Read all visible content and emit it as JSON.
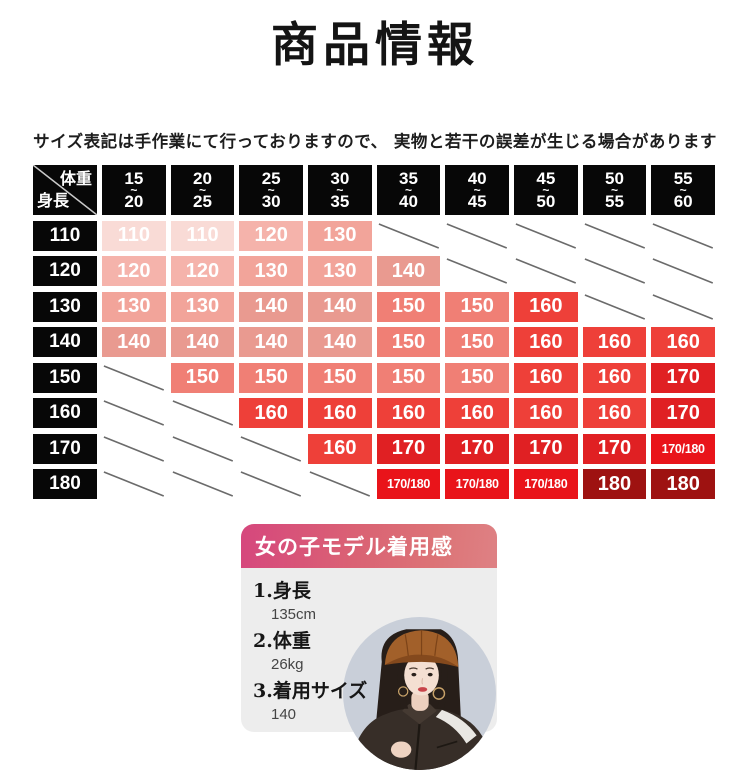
{
  "title": "商品情報",
  "note": "サイズ表記は手作業にて行っておりますので、 実物と若干の誤差が生じる場合があります",
  "size_table": {
    "corner": {
      "weight_label": "体重",
      "height_label": "身長"
    },
    "tilde": "~",
    "weight_columns": [
      {
        "from": "15",
        "to": "20"
      },
      {
        "from": "20",
        "to": "25"
      },
      {
        "from": "25",
        "to": "30"
      },
      {
        "from": "30",
        "to": "35"
      },
      {
        "from": "35",
        "to": "40"
      },
      {
        "from": "40",
        "to": "45"
      },
      {
        "from": "45",
        "to": "50"
      },
      {
        "from": "50",
        "to": "55"
      },
      {
        "from": "55",
        "to": "60"
      }
    ],
    "rows": [
      {
        "height": "110",
        "cells": [
          "110",
          "110",
          "120",
          "130",
          "",
          "",
          "",
          "",
          ""
        ]
      },
      {
        "height": "120",
        "cells": [
          "120",
          "120",
          "130",
          "130",
          "140",
          "",
          "",
          "",
          ""
        ]
      },
      {
        "height": "130",
        "cells": [
          "130",
          "130",
          "140",
          "140",
          "150",
          "150",
          "160",
          "",
          ""
        ]
      },
      {
        "height": "140",
        "cells": [
          "140",
          "140",
          "140",
          "140",
          "150",
          "150",
          "160",
          "160",
          "160"
        ]
      },
      {
        "height": "150",
        "cells": [
          "",
          "150",
          "150",
          "150",
          "150",
          "150",
          "160",
          "160",
          "170"
        ]
      },
      {
        "height": "160",
        "cells": [
          "",
          "",
          "160",
          "160",
          "160",
          "160",
          "160",
          "160",
          "170"
        ]
      },
      {
        "height": "170",
        "cells": [
          "",
          "",
          "",
          "160",
          "170",
          "170",
          "170",
          "170",
          "170/180"
        ]
      },
      {
        "height": "180",
        "cells": [
          "",
          "",
          "",
          "",
          "170/180",
          "170/180",
          "170/180",
          "180",
          "180"
        ]
      }
    ],
    "size_colors": {
      "110": "#f9dbd6",
      "120": "#f5b3ab",
      "130": "#f2a49a",
      "140": "#e99a90",
      "150": "#f07f75",
      "160": "#ee4039",
      "170": "#e02023",
      "170/180": "#e9141a",
      "180": "#9e1211"
    },
    "header_bg": "#070707",
    "diagonal_color": "#6b6b6b"
  },
  "model_card": {
    "title": "女の子モデル着用感",
    "specs": [
      {
        "label": "1.身長",
        "value": "135cm"
      },
      {
        "label": "2.体重",
        "value": "26kg"
      },
      {
        "label": "3.着用サイズ",
        "value": "140"
      }
    ],
    "photo": "girl-model-portrait",
    "gradient": [
      "#d6477d",
      "#de8184"
    ],
    "body_bg": "#ededed"
  }
}
